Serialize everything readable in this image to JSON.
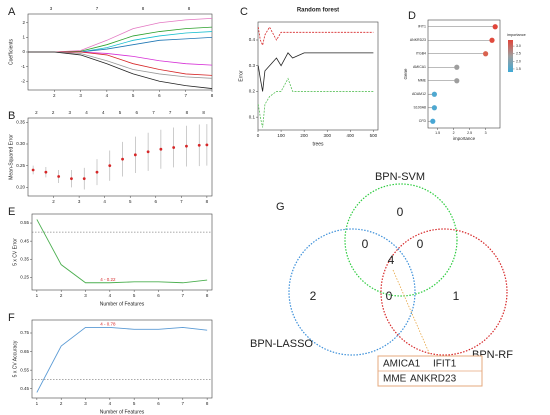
{
  "chart_data": [
    {
      "panel": "A",
      "type": "line",
      "ylabel": "Coefficients",
      "top_labels": [
        "3",
        "7",
        "8",
        "8"
      ],
      "x": [
        1,
        2,
        3,
        4,
        5,
        6,
        7,
        8
      ],
      "xlim": [
        1,
        8
      ],
      "xticks": [
        2,
        3,
        4,
        5,
        6,
        7,
        8
      ],
      "ylim": [
        -2.6,
        2.6
      ],
      "yticks": [
        -2,
        -1,
        0,
        1,
        2
      ],
      "series": [
        {
          "color": "#e377c2",
          "values": [
            0,
            0,
            0.1,
            0.8,
            1.6,
            2.0,
            2.2,
            2.3
          ]
        },
        {
          "color": "#2ca02c",
          "values": [
            0,
            0,
            0.05,
            0.5,
            1.1,
            1.4,
            1.6,
            1.7
          ]
        },
        {
          "color": "#17becf",
          "values": [
            0,
            0,
            0,
            0.3,
            0.8,
            1.1,
            1.3,
            1.4
          ]
        },
        {
          "color": "#1f77b4",
          "values": [
            0,
            0,
            0,
            0.2,
            0.5,
            0.8,
            0.9,
            1.0
          ]
        },
        {
          "color": "#d62fd6",
          "values": [
            0,
            0,
            0,
            -0.1,
            -0.3,
            -0.6,
            -0.8,
            -0.9
          ]
        },
        {
          "color": "#d62728",
          "values": [
            0,
            0,
            0,
            -0.2,
            -0.8,
            -1.2,
            -1.5,
            -1.6
          ]
        },
        {
          "color": "#999999",
          "values": [
            0,
            0,
            -0.1,
            -0.6,
            -1.2,
            -1.5,
            -1.7,
            -1.8
          ]
        },
        {
          "color": "#222222",
          "values": [
            0,
            0,
            -0.2,
            -0.8,
            -1.5,
            -2.0,
            -2.3,
            -2.5
          ]
        }
      ]
    },
    {
      "panel": "B",
      "type": "errorbar",
      "ylabel": "Mean-Squared Error",
      "top_labels": [
        "2",
        "2",
        "3",
        "4",
        "4",
        "5",
        "6",
        "7",
        "7",
        "8",
        "8"
      ],
      "x": [
        1.2,
        1.7,
        2.2,
        2.7,
        3.2,
        3.7,
        4.2,
        4.7,
        5.2,
        5.7,
        6.2,
        6.7,
        7.2,
        7.7,
        8
      ],
      "values": [
        0.24,
        0.235,
        0.225,
        0.22,
        0.22,
        0.235,
        0.25,
        0.265,
        0.275,
        0.282,
        0.288,
        0.292,
        0.295,
        0.297,
        0.298
      ],
      "errors": [
        0.01,
        0.012,
        0.015,
        0.02,
        0.025,
        0.03,
        0.035,
        0.04,
        0.042,
        0.044,
        0.045,
        0.046,
        0.047,
        0.048,
        0.048
      ],
      "color": "#d62728",
      "xlim": [
        1,
        8.2
      ],
      "xticks": [
        2,
        3,
        4,
        5,
        6,
        7,
        8
      ],
      "ylim": [
        0.18,
        0.36
      ],
      "yticks": [
        {
          "value": 0.2,
          "label": "0.20"
        },
        {
          "value": 0.25,
          "label": "0.25"
        },
        {
          "value": 0.3,
          "label": "0.30"
        },
        {
          "value": 0.35,
          "label": "0.35"
        }
      ]
    },
    {
      "panel": "C",
      "type": "line",
      "title": "Random forest",
      "xlabel": "trees",
      "ylabel": "Error",
      "x": [
        1,
        10,
        20,
        30,
        50,
        80,
        100,
        130,
        150,
        200,
        250,
        300,
        350,
        400,
        450,
        500
      ],
      "xlim": [
        0,
        520
      ],
      "xticks": [
        0,
        100,
        200,
        300,
        400,
        500
      ],
      "ylim": [
        0.05,
        0.47
      ],
      "yticks": [
        0.1,
        0.2,
        0.3,
        0.4
      ],
      "series": [
        {
          "color": "#222222",
          "style": "solid",
          "values": [
            0.3,
            0.25,
            0.2,
            0.28,
            0.3,
            0.33,
            0.3,
            0.35,
            0.33,
            0.35,
            0.35,
            0.35,
            0.35,
            0.35,
            0.35,
            0.35
          ]
        },
        {
          "color": "#d62728",
          "style": "dashed",
          "values": [
            0.45,
            0.4,
            0.38,
            0.42,
            0.45,
            0.4,
            0.43,
            0.43,
            0.43,
            0.43,
            0.43,
            0.43,
            0.43,
            0.43,
            0.43,
            0.43
          ]
        },
        {
          "color": "#5cc15c",
          "style": "dashed",
          "values": [
            0.15,
            0.1,
            0.06,
            0.15,
            0.18,
            0.2,
            0.2,
            0.25,
            0.2,
            0.2,
            0.2,
            0.2,
            0.2,
            0.2,
            0.2,
            0.2
          ]
        }
      ]
    },
    {
      "panel": "D",
      "type": "lollipop",
      "xlabel": "importance",
      "ylabel": "Gene",
      "legend_title": "importance",
      "categories": [
        "IFIT1",
        "ANKRD23",
        "ITGB4",
        "AMICA1",
        "MME",
        "ADAM12",
        "S100A8",
        "CFD"
      ],
      "values": [
        3.3,
        3.2,
        3.0,
        2.1,
        2.1,
        1.4,
        1.4,
        1.35
      ],
      "colors": [
        "#e0453a",
        "#e04a3d",
        "#d9624f",
        "#9e9e9e",
        "#9e9e9e",
        "#4fa8d0",
        "#4fa8d0",
        "#47a6d4"
      ],
      "xlim": [
        1.2,
        3.45
      ],
      "xticks": [
        1.5,
        2,
        2.5,
        3
      ],
      "legend_colors": [
        "#3fa9d6",
        "#9e9e9e",
        "#e0453a"
      ],
      "legend_lim": [
        1.3,
        3.4
      ],
      "legend_ticks": [
        {
          "value": 3,
          "label": "3.0"
        },
        {
          "value": 2.5,
          "label": "2.5"
        },
        {
          "value": 2,
          "label": "2.0"
        },
        {
          "value": 1.5,
          "label": "1.5"
        }
      ]
    },
    {
      "panel": "E",
      "type": "line",
      "xlabel": "Number of Features",
      "ylabel": "5 x CV Error",
      "annotation": "4 - 0.22",
      "x": [
        1,
        2,
        3,
        4,
        5,
        6,
        7,
        8
      ],
      "values": [
        0.57,
        0.32,
        0.22,
        0.22,
        0.225,
        0.225,
        0.22,
        0.235
      ],
      "color": "#4caf50",
      "ref_line": 0.5,
      "xlim": [
        0.8,
        8.2
      ],
      "xticks": [
        1,
        2,
        3,
        4,
        5,
        6,
        7,
        8
      ],
      "ylim": [
        0.18,
        0.6
      ],
      "yticks": [
        0.25,
        0.35,
        0.45,
        0.55
      ]
    },
    {
      "panel": "F",
      "type": "line",
      "xlabel": "Number of Features",
      "ylabel": "5 x CV Accuracy",
      "annotation": "4 - 0.78",
      "x": [
        1,
        2,
        3,
        4,
        5,
        6,
        7,
        8
      ],
      "values": [
        0.43,
        0.68,
        0.78,
        0.78,
        0.77,
        0.77,
        0.78,
        0.765
      ],
      "color": "#5b9bd5",
      "ref_line": 0.5,
      "xlim": [
        0.8,
        8.2
      ],
      "xticks": [
        1,
        2,
        3,
        4,
        5,
        6,
        7,
        8
      ],
      "ylim": [
        0.4,
        0.82
      ],
      "yticks": [
        0.45,
        0.55,
        0.65,
        0.75
      ]
    },
    {
      "panel": "G",
      "type": "venn",
      "sets": [
        {
          "name": "BPN-SVM",
          "color": "#2ecc40"
        },
        {
          "name": "BPN-LASSO",
          "color": "#3b8fd9"
        },
        {
          "name": "BPN-RF",
          "color": "#d62728"
        }
      ],
      "counts": [
        0,
        0,
        0,
        4,
        2,
        0,
        1
      ],
      "genes": [
        "AMICA1",
        "IFIT1",
        "MME",
        "ANKRD23"
      ]
    }
  ]
}
